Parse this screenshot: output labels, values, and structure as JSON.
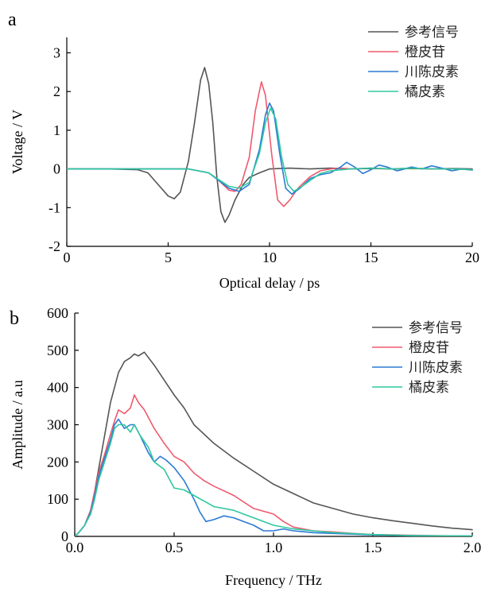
{
  "chart_data": [
    {
      "panel": "a",
      "type": "line",
      "xlabel": "Optical delay / ps",
      "ylabel": "Voltage / V",
      "xlim": [
        0,
        20
      ],
      "ylim": [
        -2,
        3.4
      ],
      "xticks": [
        0,
        5,
        10,
        15,
        20
      ],
      "yticks": [
        -2,
        -1,
        0,
        1,
        2,
        3
      ],
      "grid": false,
      "legend_position": "top-right",
      "series": [
        {
          "name": "参考信号",
          "color": "#555555",
          "x": [
            0,
            2,
            3.5,
            4,
            4.5,
            5,
            5.3,
            5.6,
            6,
            6.3,
            6.6,
            6.8,
            7.0,
            7.2,
            7.4,
            7.6,
            7.8,
            8.0,
            8.3,
            8.7,
            9.0,
            9.5,
            10,
            11,
            12,
            13,
            14,
            15,
            16,
            17,
            18,
            19,
            20
          ],
          "y": [
            0,
            0,
            -0.02,
            -0.1,
            -0.4,
            -0.7,
            -0.77,
            -0.6,
            0.2,
            1.2,
            2.3,
            2.62,
            2.2,
            1.2,
            -0.2,
            -1.1,
            -1.38,
            -1.2,
            -0.8,
            -0.4,
            -0.22,
            -0.1,
            0,
            0.02,
            0,
            0.02,
            0,
            0.01,
            0,
            0.01,
            0,
            0.01,
            0
          ]
        },
        {
          "name": "橙皮苷",
          "color": "#f05a6e",
          "x": [
            0,
            6,
            7,
            7.5,
            8,
            8.3,
            8.6,
            9,
            9.3,
            9.6,
            9.8,
            10.1,
            10.4,
            10.7,
            11,
            11.4,
            12,
            12.5,
            13,
            13.5,
            14,
            15,
            16,
            17,
            18,
            19,
            20
          ],
          "y": [
            0,
            0,
            -0.1,
            -0.3,
            -0.55,
            -0.58,
            -0.4,
            0.3,
            1.5,
            2.25,
            1.9,
            0.4,
            -0.8,
            -0.97,
            -0.8,
            -0.5,
            -0.2,
            -0.05,
            0,
            0.02,
            0,
            0.02,
            0,
            0.02,
            0,
            0,
            -0.02
          ]
        },
        {
          "name": "川陈皮素",
          "color": "#2a7bd4",
          "x": [
            0,
            6,
            7,
            7.5,
            8,
            8.5,
            9,
            9.5,
            9.8,
            10.0,
            10.2,
            10.5,
            10.8,
            11.1,
            11.5,
            12,
            12.5,
            13,
            13.5,
            13.8,
            14.2,
            14.6,
            15,
            15.4,
            15.8,
            16.3,
            17,
            17.5,
            18,
            18.5,
            19,
            19.5,
            20
          ],
          "y": [
            0,
            0,
            -0.1,
            -0.3,
            -0.5,
            -0.58,
            -0.4,
            0.5,
            1.4,
            1.7,
            1.5,
            0.4,
            -0.5,
            -0.65,
            -0.5,
            -0.25,
            -0.15,
            -0.1,
            0.05,
            0.17,
            0.05,
            -0.12,
            -0.02,
            0.1,
            0.05,
            -0.05,
            0.05,
            0,
            0.08,
            0.02,
            -0.05,
            0,
            -0.03
          ]
        },
        {
          "name": "橘皮素",
          "color": "#2fc8a0",
          "x": [
            0,
            6,
            7,
            7.5,
            8,
            8.5,
            9,
            9.5,
            9.8,
            10.05,
            10.3,
            10.6,
            10.9,
            11.2,
            11.6,
            12,
            12.5,
            13,
            14,
            15,
            16,
            17,
            18,
            19,
            20
          ],
          "y": [
            0,
            0,
            -0.1,
            -0.28,
            -0.45,
            -0.5,
            -0.35,
            0.4,
            1.2,
            1.57,
            1.3,
            0.3,
            -0.4,
            -0.58,
            -0.45,
            -0.3,
            -0.12,
            -0.05,
            0,
            0.02,
            0,
            0.02,
            0,
            0,
            -0.02
          ]
        }
      ]
    },
    {
      "panel": "b",
      "type": "line",
      "xlabel": "Frequency / THz",
      "ylabel": "Amplitude / a.u",
      "xlim": [
        0,
        2
      ],
      "ylim": [
        0,
        600
      ],
      "xticks": [
        0.0,
        0.5,
        1.0,
        1.5,
        2.0
      ],
      "yticks": [
        0,
        100,
        200,
        300,
        400,
        500,
        600
      ],
      "grid": false,
      "legend_position": "top-right",
      "series": [
        {
          "name": "参考信号",
          "color": "#555555",
          "x": [
            0,
            0.02,
            0.05,
            0.08,
            0.1,
            0.12,
            0.15,
            0.18,
            0.2,
            0.22,
            0.25,
            0.28,
            0.3,
            0.32,
            0.35,
            0.4,
            0.45,
            0.5,
            0.55,
            0.6,
            0.7,
            0.8,
            0.9,
            1.0,
            1.1,
            1.2,
            1.3,
            1.4,
            1.5,
            1.6,
            1.7,
            1.8,
            1.9,
            2.0
          ],
          "y": [
            0,
            10,
            30,
            70,
            120,
            180,
            270,
            360,
            400,
            440,
            470,
            480,
            490,
            485,
            495,
            460,
            420,
            380,
            345,
            300,
            250,
            210,
            175,
            140,
            115,
            90,
            75,
            60,
            50,
            42,
            35,
            28,
            22,
            18
          ]
        },
        {
          "name": "橙皮苷",
          "color": "#f05a6e",
          "x": [
            0,
            0.02,
            0.05,
            0.08,
            0.1,
            0.12,
            0.15,
            0.18,
            0.2,
            0.22,
            0.25,
            0.28,
            0.3,
            0.32,
            0.35,
            0.4,
            0.45,
            0.5,
            0.55,
            0.6,
            0.65,
            0.7,
            0.8,
            0.9,
            1.0,
            1.05,
            1.1,
            1.2,
            1.3,
            1.4,
            1.5,
            1.6,
            1.8,
            2.0
          ],
          "y": [
            0,
            10,
            30,
            70,
            120,
            170,
            220,
            275,
            310,
            340,
            330,
            345,
            380,
            360,
            340,
            290,
            250,
            215,
            200,
            170,
            150,
            135,
            110,
            75,
            60,
            40,
            25,
            15,
            12,
            8,
            5,
            4,
            2,
            1
          ]
        },
        {
          "name": "川陈皮素",
          "color": "#2a7bd4",
          "x": [
            0,
            0.02,
            0.05,
            0.08,
            0.1,
            0.12,
            0.15,
            0.18,
            0.2,
            0.22,
            0.25,
            0.28,
            0.3,
            0.33,
            0.37,
            0.4,
            0.43,
            0.46,
            0.5,
            0.55,
            0.6,
            0.63,
            0.66,
            0.7,
            0.75,
            0.8,
            0.9,
            0.95,
            1.0,
            1.05,
            1.1,
            1.2,
            1.3,
            1.5,
            1.7,
            2.0
          ],
          "y": [
            0,
            10,
            30,
            65,
            110,
            160,
            210,
            260,
            300,
            315,
            290,
            300,
            300,
            270,
            225,
            200,
            215,
            205,
            185,
            150,
            100,
            65,
            40,
            45,
            55,
            50,
            30,
            15,
            15,
            20,
            15,
            10,
            8,
            4,
            2,
            1
          ]
        },
        {
          "name": "橘皮素",
          "color": "#2fc8a0",
          "x": [
            0,
            0.02,
            0.05,
            0.08,
            0.1,
            0.12,
            0.15,
            0.18,
            0.2,
            0.22,
            0.25,
            0.28,
            0.3,
            0.33,
            0.37,
            0.4,
            0.45,
            0.5,
            0.55,
            0.6,
            0.7,
            0.8,
            0.9,
            1.0,
            1.1,
            1.2,
            1.3,
            1.5,
            1.7,
            2.0
          ],
          "y": [
            0,
            10,
            30,
            60,
            100,
            150,
            200,
            250,
            290,
            300,
            300,
            280,
            300,
            270,
            240,
            200,
            180,
            130,
            125,
            110,
            80,
            70,
            50,
            30,
            20,
            15,
            10,
            5,
            2,
            1
          ]
        }
      ]
    }
  ]
}
